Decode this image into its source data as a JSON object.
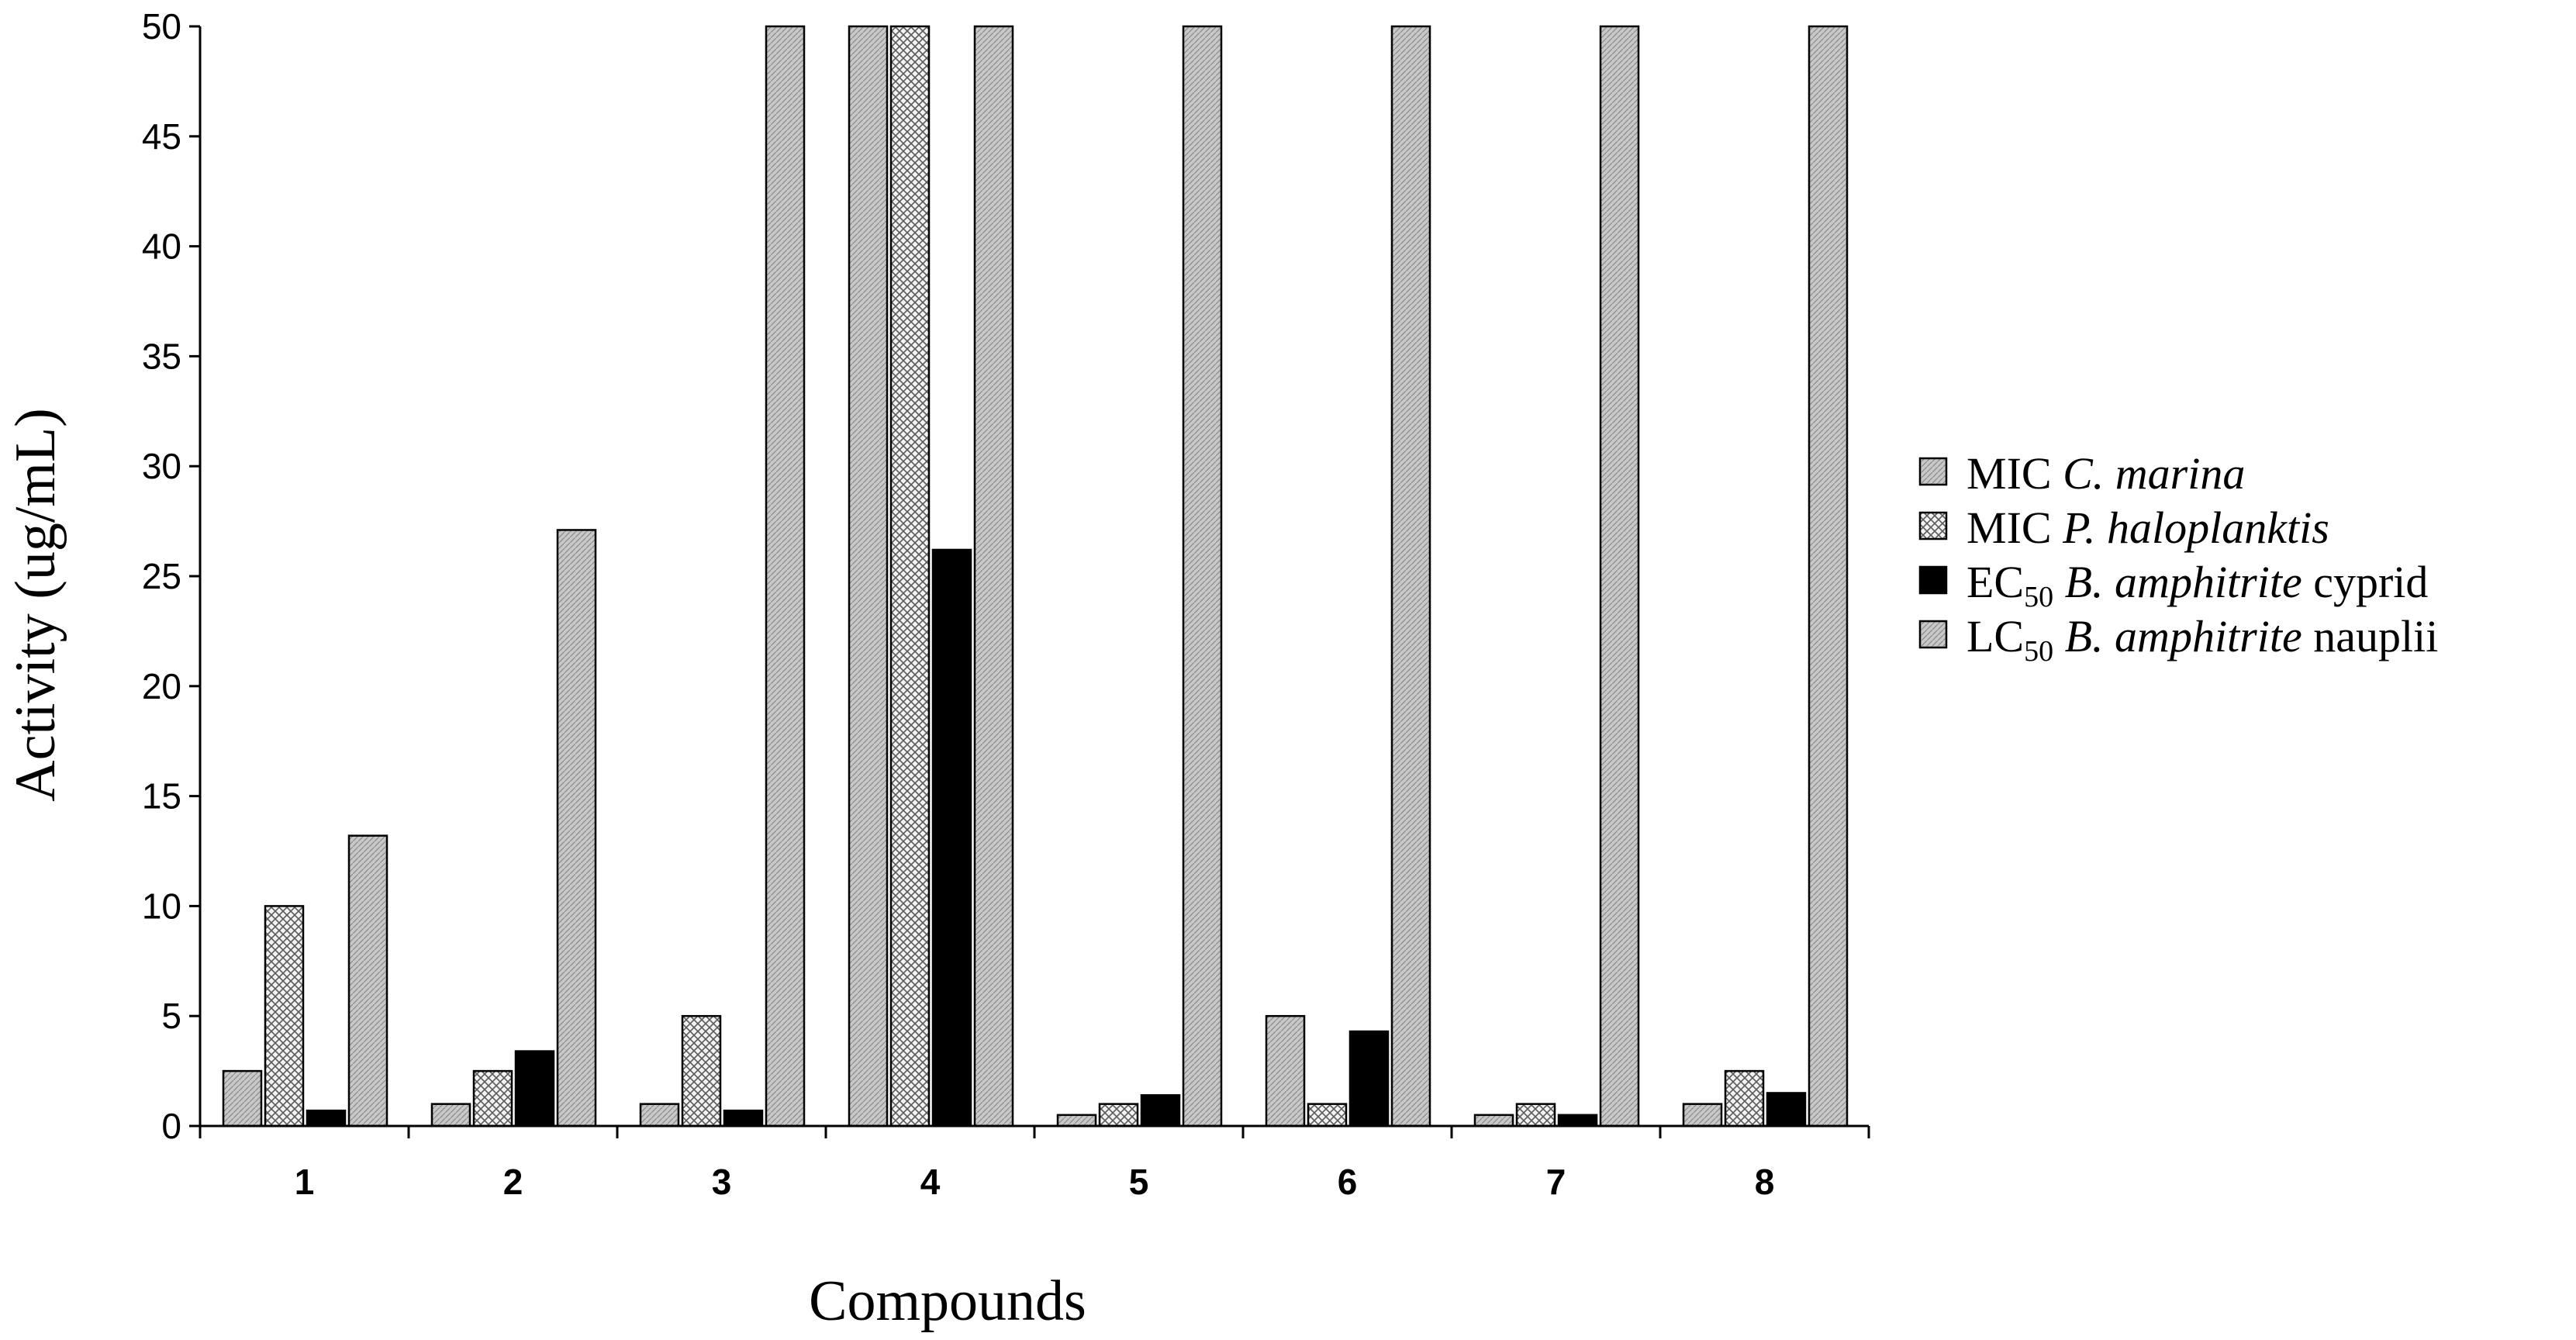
{
  "chart_data": {
    "type": "bar",
    "title": "",
    "xlabel": "Compounds",
    "ylabel": "Activity (ug/mL)",
    "ylim": [
      0,
      50
    ],
    "yticks": [
      0,
      5,
      10,
      15,
      20,
      25,
      30,
      35,
      40,
      45,
      50
    ],
    "categories": [
      "1",
      "2",
      "3",
      "4",
      "5",
      "6",
      "7",
      "8"
    ],
    "legend_position": "right",
    "series": [
      {
        "name": "MIC C. marina",
        "legend": {
          "prefix": "MIC ",
          "sub": "",
          "italic": "C. marina",
          "suffix": ""
        },
        "pattern": "light-hatch",
        "values": [
          2.5,
          1.0,
          1.0,
          50,
          0.5,
          5.0,
          0.5,
          1.0
        ]
      },
      {
        "name": "MIC P. haloplanktis",
        "legend": {
          "prefix": "MIC ",
          "sub": "",
          "italic": "P. haloplanktis",
          "suffix": ""
        },
        "pattern": "crosshatch",
        "values": [
          10.0,
          2.5,
          5.0,
          50,
          1.0,
          1.0,
          1.0,
          2.5
        ]
      },
      {
        "name": "EC50 B. amphitrite cyprid",
        "legend": {
          "prefix": "EC",
          "sub": "50",
          "italic": "B. amphitrite",
          "suffix": " cyprid"
        },
        "pattern": "solid-black",
        "values": [
          0.7,
          3.4,
          0.7,
          26.2,
          1.4,
          4.3,
          0.5,
          1.5
        ]
      },
      {
        "name": "LC50 B. amphitrite nauplii",
        "legend": {
          "prefix": "LC",
          "sub": "50",
          "italic": "B. amphitrite",
          "suffix": " nauplii"
        },
        "pattern": "light-hatch",
        "values": [
          13.2,
          27.1,
          50,
          50,
          50,
          50,
          50,
          50
        ]
      }
    ]
  }
}
